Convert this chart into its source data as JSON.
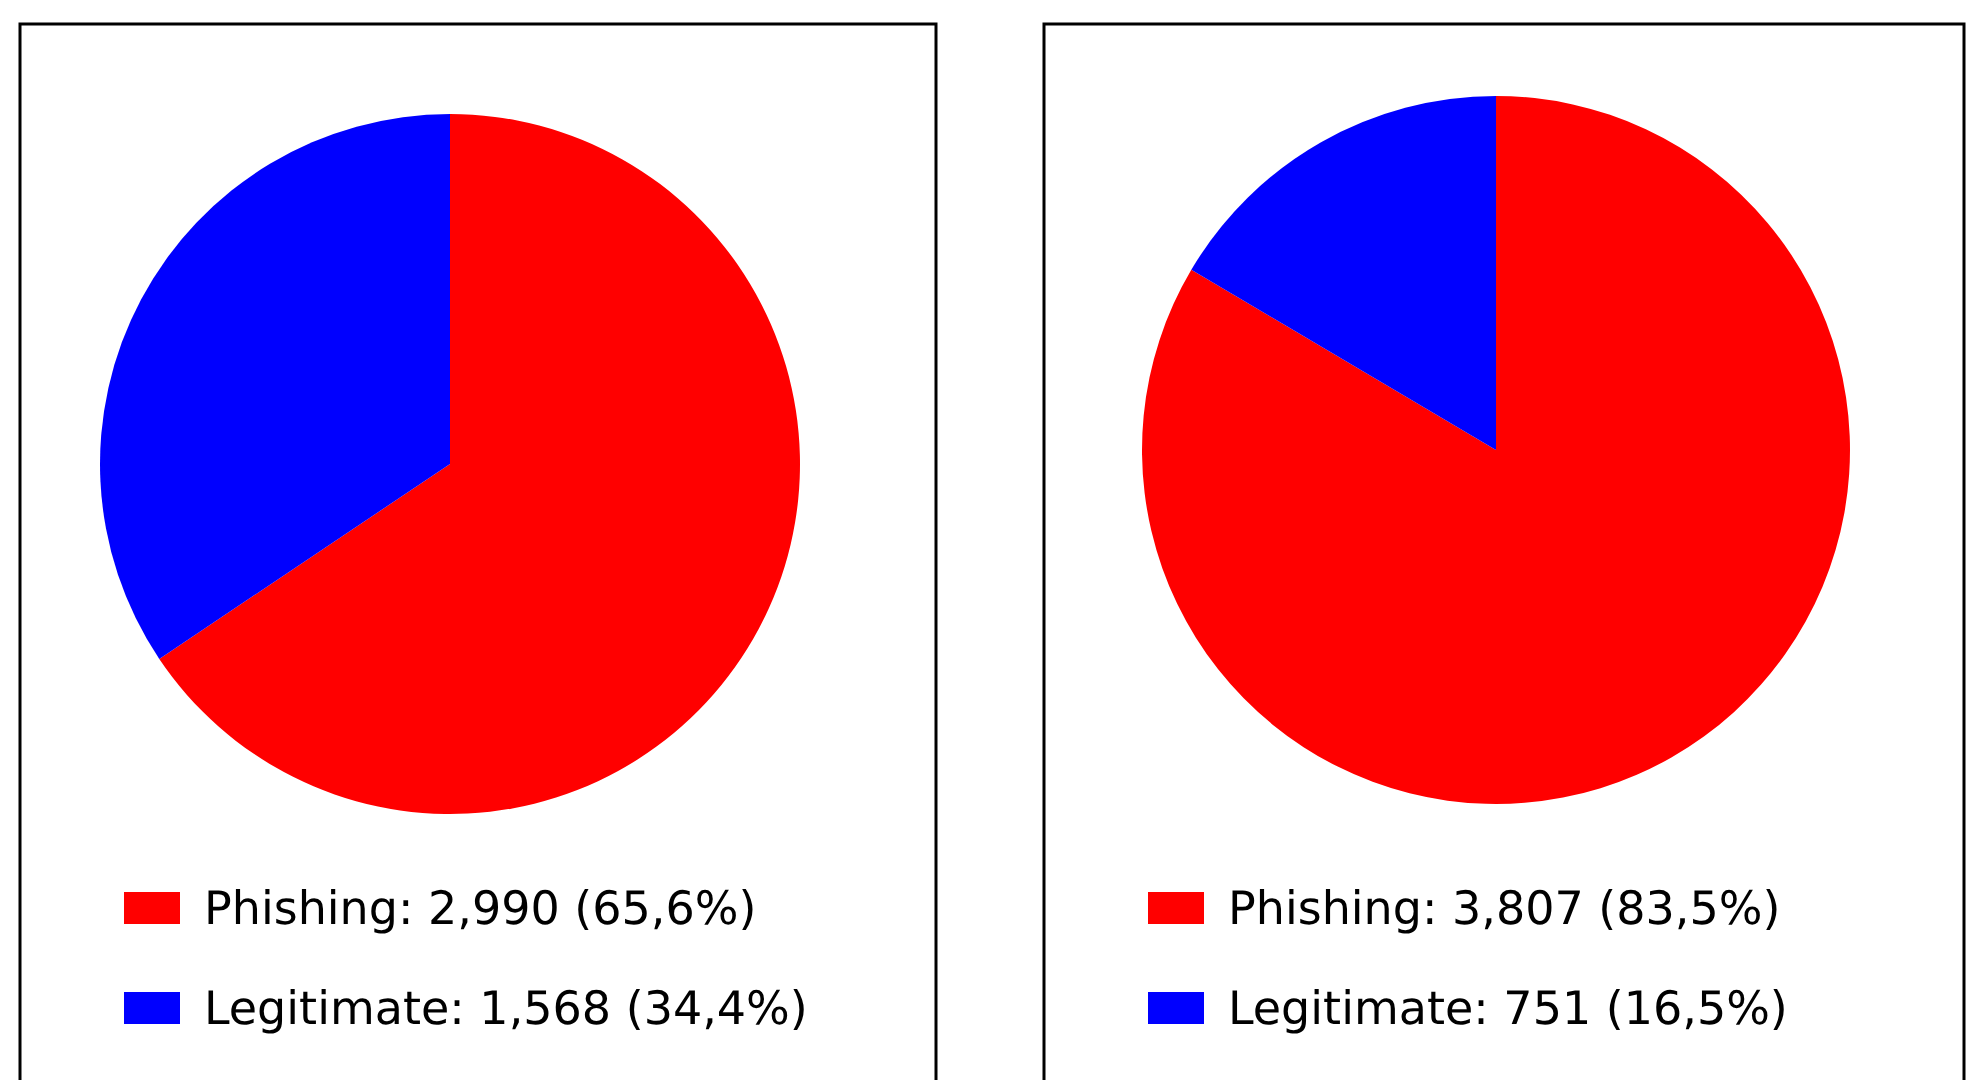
{
  "chart_data": [
    {
      "type": "pie",
      "categories": [
        "Phishing: 2,990 (65,6%)",
        "Legitimate: 1,568 (34,4%)"
      ],
      "values": [
        65.6,
        34.4
      ],
      "colors": [
        "#ff0000",
        "#0000ff"
      ],
      "legend": "bottom"
    },
    {
      "type": "pie",
      "categories": [
        "Phishing: 3,807 (83,5%)",
        "Legitimate: 751 (16,5%)"
      ],
      "values": [
        83.5,
        16.5
      ],
      "colors": [
        "#ff0000",
        "#0000ff"
      ],
      "legend": "bottom"
    }
  ]
}
